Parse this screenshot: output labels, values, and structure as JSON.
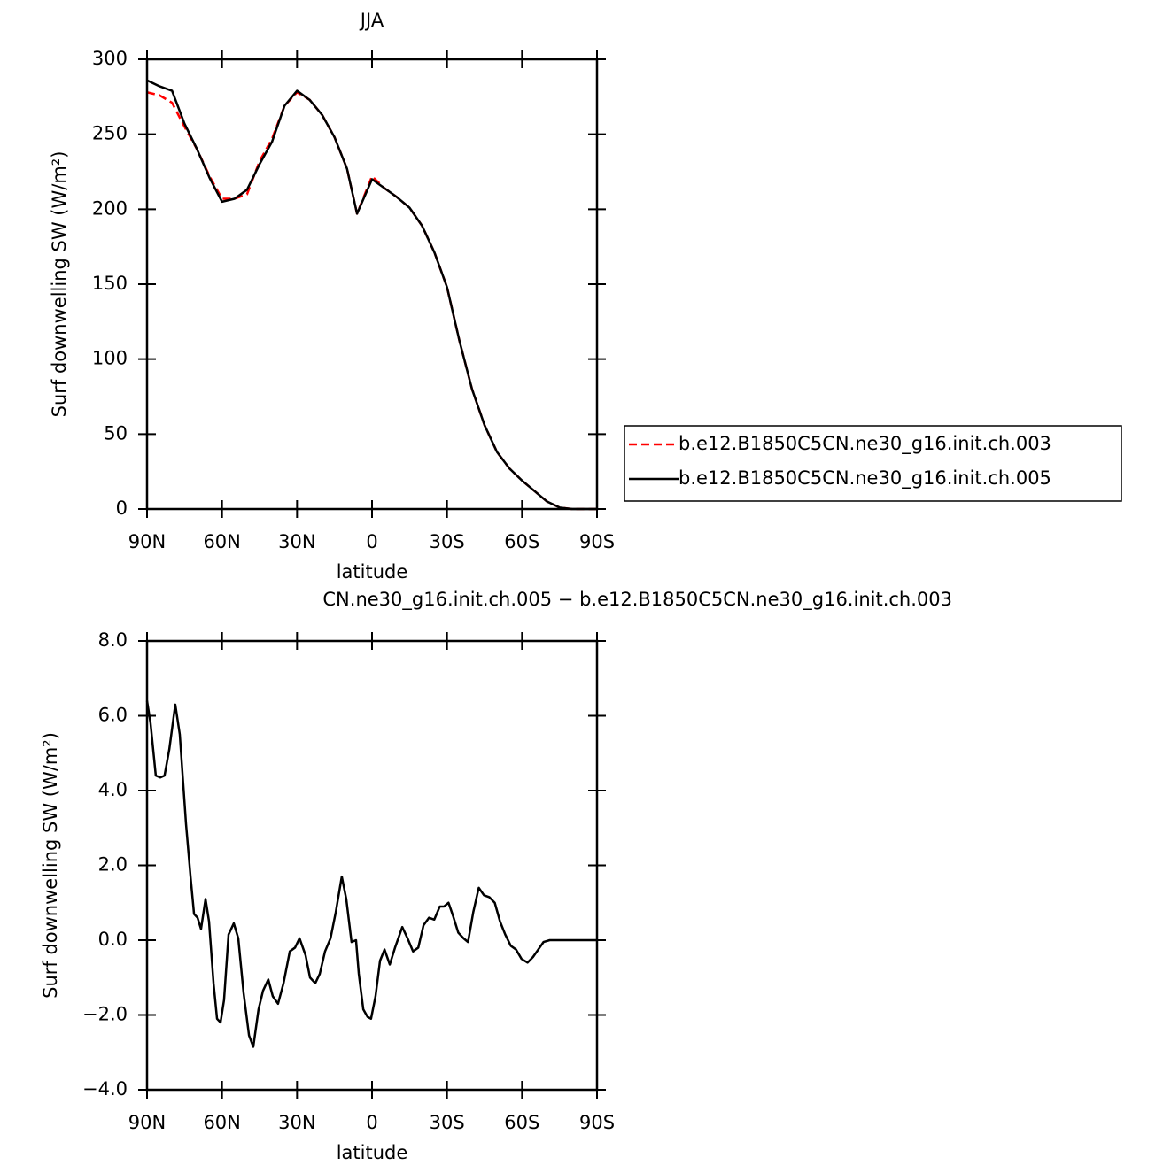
{
  "chart_data": [
    {
      "type": "line",
      "title": "JJA",
      "xlabel": "latitude",
      "ylabel": "Surf downwelling SW (W/m²)",
      "x": [
        90,
        85,
        80,
        75,
        70,
        65,
        60,
        55,
        50,
        45,
        40,
        35,
        30,
        25,
        20,
        15,
        10,
        6,
        0,
        -5,
        -10,
        -15,
        -20,
        -25,
        -30,
        -35,
        -40,
        -45,
        -50,
        -55,
        -60,
        -65,
        -70,
        -75,
        -80,
        -85,
        -90
      ],
      "series": [
        {
          "name": "b.e12.B1850C5CN.ne30_g16.init.ch.003",
          "color": "#ff0000",
          "linestyle": "dashed",
          "values": [
            278,
            276,
            271,
            255,
            240,
            222,
            207,
            207,
            210,
            232,
            247,
            269,
            278,
            273,
            263,
            248,
            227,
            197,
            222,
            214,
            208,
            201,
            189,
            171,
            148,
            112,
            80,
            56,
            38,
            27,
            19,
            12,
            5,
            1,
            0,
            0,
            0
          ]
        },
        {
          "name": "b.e12.B1850C5CN.ne30_g16.init.ch.005",
          "color": "#000000",
          "linestyle": "solid",
          "values": [
            286,
            282,
            279,
            257,
            240,
            221,
            205,
            207,
            213,
            230,
            245,
            269,
            279,
            273,
            263,
            248,
            227,
            197,
            220,
            214,
            208,
            201,
            189,
            171,
            148,
            112,
            80,
            56,
            38,
            27,
            19,
            12,
            5,
            1,
            0,
            0,
            0
          ]
        }
      ],
      "xlim": [
        90,
        -90
      ],
      "xticks": [
        {
          "value": 90,
          "label": "90N"
        },
        {
          "value": 60,
          "label": "60N"
        },
        {
          "value": 30,
          "label": "30N"
        },
        0,
        {
          "value": -30,
          "label": "30S"
        },
        {
          "value": -60,
          "label": "60S"
        },
        {
          "value": -90,
          "label": "90S"
        }
      ],
      "ylim": [
        0,
        300
      ],
      "yticks": [
        0,
        50,
        100,
        150,
        200,
        250,
        300
      ],
      "legend": "right"
    },
    {
      "type": "line",
      "title": "CN.ne30_g16.init.ch.005 − b.e12.B1850C5CN.ne30_g16.init.ch.003",
      "xlabel": "latitude",
      "ylabel": "Surf downwelling SW (W/m²)",
      "x": [
        90,
        88.6,
        86.5,
        84.7,
        83,
        81.1,
        78.7,
        76.9,
        74.4,
        72.6,
        71.2,
        69.8,
        68.4,
        66.6,
        65.2,
        63.4,
        62,
        60.6,
        59.2,
        57.4,
        55.3,
        53.5,
        51.4,
        49.2,
        47.5,
        45.4,
        43.6,
        41.5,
        39.7,
        37.6,
        35.4,
        32.9,
        30.8,
        29,
        26.6,
        24.8,
        22.7,
        20.9,
        18.8,
        16.6,
        14.5,
        12.1,
        10.3,
        8.2,
        6.4,
        5.3,
        3.5,
        1.8,
        0.4,
        -1.4,
        -3.2,
        -5,
        -7.1,
        -9.2,
        -12.1,
        -14.2,
        -16.4,
        -18.5,
        -20.6,
        -22.8,
        -24.9,
        -27.1,
        -28.8,
        -30.6,
        -32.4,
        -34.5,
        -36.6,
        -38.4,
        -40.5,
        -42.7,
        -44.8,
        -46.9,
        -49.1,
        -51.2,
        -53.3,
        -55.5,
        -57.6,
        -59.8,
        -62.2,
        -64.4,
        -66.5,
        -68.6,
        -71.1,
        -81.5,
        -90
      ],
      "series": [
        {
          "color": "#000000",
          "linestyle": "solid",
          "values": [
            6.4,
            5.8,
            4.4,
            4.35,
            4.4,
            5.1,
            6.3,
            5.5,
            3.1,
            1.7,
            0.7,
            0.6,
            0.3,
            1.1,
            0.5,
            -1.15,
            -2.1,
            -2.2,
            -1.6,
            0.15,
            0.45,
            0.05,
            -1.4,
            -2.55,
            -2.85,
            -1.85,
            -1.35,
            -1.05,
            -1.5,
            -1.7,
            -1.15,
            -0.3,
            -0.2,
            0.05,
            -0.4,
            -1.0,
            -1.15,
            -0.9,
            -0.3,
            0.05,
            0.75,
            1.7,
            1.1,
            -0.05,
            0,
            -0.9,
            -1.85,
            -2.05,
            -2.1,
            -1.5,
            -0.55,
            -0.25,
            -0.65,
            -0.2,
            0.35,
            0.05,
            -0.3,
            -0.2,
            0.4,
            0.6,
            0.55,
            0.9,
            0.9,
            1.0,
            0.65,
            0.2,
            0.05,
            -0.05,
            0.75,
            1.4,
            1.2,
            1.15,
            1.0,
            0.5,
            0.15,
            -0.15,
            -0.25,
            -0.5,
            -0.6,
            -0.45,
            -0.25,
            -0.05,
            0,
            0,
            0
          ]
        }
      ],
      "xlim": [
        90,
        -90
      ],
      "xticks": [
        {
          "value": 90,
          "label": "90N"
        },
        {
          "value": 60,
          "label": "60N"
        },
        {
          "value": 30,
          "label": "30N"
        },
        0,
        {
          "value": -30,
          "label": "30S"
        },
        {
          "value": -60,
          "label": "60S"
        },
        {
          "value": -90,
          "label": "90S"
        }
      ],
      "ylim": [
        -4,
        8
      ],
      "yticks": [
        {
          "value": -4,
          "label": "−4.0"
        },
        {
          "value": -2,
          "label": "−2.0"
        },
        {
          "value": 0,
          "label": "0.0"
        },
        {
          "value": 2,
          "label": "2.0"
        },
        {
          "value": 4,
          "label": "4.0"
        },
        {
          "value": 6,
          "label": "6.0"
        },
        {
          "value": 8,
          "label": "8.0"
        }
      ]
    }
  ]
}
